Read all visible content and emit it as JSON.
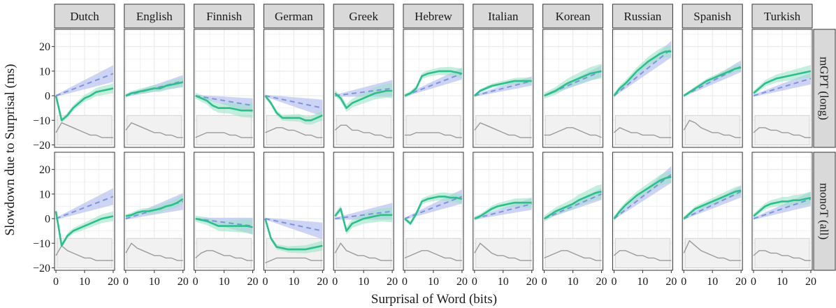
{
  "chart_data": {
    "type": "line",
    "xlabel": "Surprisal of Word (bits)",
    "ylabel": "Slowdown due to Surprisal (ms)",
    "xlim": [
      -0.5,
      20.5
    ],
    "ylim": [
      -21,
      27
    ],
    "x_ticks": [
      0,
      10,
      20
    ],
    "y_ticks": [
      20,
      10,
      0,
      -10,
      -20
    ],
    "grid": true,
    "languages": [
      "Dutch",
      "English",
      "Finnish",
      "German",
      "Greek",
      "Hebrew",
      "Italian",
      "Korean",
      "Russian",
      "Spanish",
      "Turkish"
    ],
    "rows": [
      "mGPT (long)",
      "monoT (all)"
    ],
    "colors": {
      "nonlinear": "#2dbf8b",
      "nonlinear_band": "#9de3c6",
      "linear": "#7f93e0",
      "linear_band": "#b8c2ef",
      "density": "#9a9a9a",
      "density_box": "#f1f1f1",
      "strip": "#d9d9d9"
    },
    "x": [
      0,
      2,
      4,
      6,
      8,
      10,
      12,
      14,
      16,
      18,
      20
    ],
    "panels": [
      {
        "row": "mGPT (long)",
        "language": "Dutch",
        "linear_end": 9,
        "linear_band": 3,
        "nonlinear": [
          0,
          -10,
          -8,
          -5,
          -3,
          -1,
          0,
          1.5,
          2,
          2.5,
          3
        ],
        "nonlinear_band": 2,
        "density": [
          5,
          9,
          8,
          7,
          6,
          5,
          4,
          4,
          3,
          3,
          3
        ]
      },
      {
        "row": "mGPT (long)",
        "language": "English",
        "linear_end": 6,
        "linear_band": 2,
        "nonlinear": [
          0,
          1,
          1.5,
          2,
          2.5,
          3,
          3,
          4,
          4.5,
          5,
          5.5
        ],
        "nonlinear_band": 2,
        "density": [
          6,
          9,
          8,
          7,
          6,
          5,
          5,
          4,
          4,
          3,
          3
        ]
      },
      {
        "row": "mGPT (long)",
        "language": "Finnish",
        "linear_end": -4,
        "linear_band": 2.5,
        "nonlinear": [
          0,
          -1,
          -2,
          -4,
          -5,
          -5,
          -5,
          -5.5,
          -6,
          -6,
          -6
        ],
        "nonlinear_band": 3,
        "density": [
          3,
          4,
          5,
          5,
          5,
          5,
          4,
          4,
          3,
          3,
          3
        ]
      },
      {
        "row": "mGPT (long)",
        "language": "German",
        "linear_end": -5,
        "linear_band": 3,
        "nonlinear": [
          0,
          -3,
          -7,
          -9,
          -9,
          -9,
          -9,
          -10,
          -10,
          -9,
          -8
        ],
        "nonlinear_band": 2,
        "density": [
          5,
          6,
          7,
          7,
          6,
          6,
          5,
          4,
          4,
          3,
          3
        ]
      },
      {
        "row": "mGPT (long)",
        "language": "Greek",
        "linear_end": 3,
        "linear_band": 3,
        "nonlinear": [
          1,
          -1,
          -5,
          -3,
          -2,
          -1,
          0,
          1,
          1.5,
          2,
          2
        ],
        "nonlinear_band": 3,
        "density": [
          6,
          8,
          8,
          6,
          6,
          5,
          5,
          4,
          4,
          3,
          3
        ]
      },
      {
        "row": "mGPT (long)",
        "language": "Hebrew",
        "linear_end": 9,
        "linear_band": 2,
        "nonlinear": [
          0,
          1,
          3,
          8,
          9,
          9.5,
          10,
          10,
          10,
          9.5,
          9
        ],
        "nonlinear_band": 2,
        "density": [
          4,
          4,
          5,
          5,
          5,
          5,
          5,
          4,
          4,
          3,
          3
        ]
      },
      {
        "row": "mGPT (long)",
        "language": "Italian",
        "linear_end": 6,
        "linear_band": 1.5,
        "nonlinear": [
          0,
          2,
          3,
          4,
          4.5,
          5,
          5.5,
          6,
          6,
          6,
          6
        ],
        "nonlinear_band": 1.5,
        "density": [
          6,
          9,
          8,
          7,
          6,
          5,
          4,
          4,
          3,
          3,
          3
        ]
      },
      {
        "row": "mGPT (long)",
        "language": "Korean",
        "linear_end": 10,
        "linear_band": 2,
        "nonlinear": [
          0,
          1,
          2,
          3.5,
          5,
          6,
          7,
          8,
          9,
          9.5,
          10
        ],
        "nonlinear_band": 3,
        "density": [
          4,
          4,
          5,
          6,
          7,
          7,
          6,
          5,
          4,
          4,
          3
        ]
      },
      {
        "row": "mGPT (long)",
        "language": "Russian",
        "linear_end": 19,
        "linear_band": 3,
        "nonlinear": [
          0,
          3,
          5,
          7.5,
          10,
          12,
          14,
          15.5,
          17,
          18,
          18
        ],
        "nonlinear_band": 2.5,
        "density": [
          5,
          7,
          6,
          5,
          5,
          4,
          4,
          4,
          3,
          3,
          3
        ]
      },
      {
        "row": "mGPT (long)",
        "language": "Spanish",
        "linear_end": 12,
        "linear_band": 2,
        "nonlinear": [
          0,
          1.5,
          3,
          4.5,
          6,
          7,
          8,
          9,
          10,
          11,
          11.5
        ],
        "nonlinear_band": 1.5,
        "density": [
          6,
          10,
          9,
          7,
          6,
          5,
          5,
          4,
          4,
          3,
          3
        ]
      },
      {
        "row": "mGPT (long)",
        "language": "Turkish",
        "linear_end": 7,
        "linear_band": 2,
        "nonlinear": [
          1,
          3,
          5,
          6,
          7,
          7.5,
          8,
          8.5,
          9,
          9.5,
          10
        ],
        "nonlinear_band": 2.5,
        "density": [
          5,
          7,
          7,
          6,
          6,
          5,
          5,
          4,
          4,
          3,
          3
        ]
      },
      {
        "row": "monoT (all)",
        "language": "Dutch",
        "linear_end": 9,
        "linear_band": 3,
        "nonlinear": [
          3,
          -11,
          -7,
          -5,
          -4,
          -3,
          -2,
          -1,
          0,
          0.5,
          1
        ],
        "nonlinear_band": 2,
        "density": [
          5,
          9,
          7,
          6,
          5,
          4,
          4,
          3,
          3,
          3,
          3
        ]
      },
      {
        "row": "monoT (all)",
        "language": "English",
        "linear_end": 7,
        "linear_band": 3,
        "nonlinear": [
          1,
          1.5,
          2.5,
          3,
          3,
          3.5,
          4,
          5,
          5.5,
          6.5,
          8
        ],
        "nonlinear_band": 2,
        "density": [
          6,
          10,
          8,
          7,
          6,
          5,
          5,
          4,
          4,
          3,
          3
        ]
      },
      {
        "row": "monoT (all)",
        "language": "Finnish",
        "linear_end": -3,
        "linear_band": 3,
        "nonlinear": [
          0,
          -0.5,
          -1,
          -2,
          -3,
          -3,
          -3,
          -3,
          -3,
          -3,
          -3.5
        ],
        "nonlinear_band": 3,
        "density": [
          4,
          6,
          7,
          7,
          6,
          5,
          5,
          4,
          4,
          3,
          3
        ]
      },
      {
        "row": "monoT (all)",
        "language": "German",
        "linear_end": -5,
        "linear_band": 3,
        "nonlinear": [
          0,
          -8,
          -11.5,
          -12,
          -12.5,
          -12.5,
          -12.5,
          -12.5,
          -12,
          -11.5,
          -11
        ],
        "nonlinear_band": 2,
        "density": [
          2,
          3,
          4,
          4,
          4,
          4,
          4,
          4,
          3,
          3,
          3
        ]
      },
      {
        "row": "monoT (all)",
        "language": "Greek",
        "linear_end": 3,
        "linear_band": 3,
        "nonlinear": [
          1,
          4,
          -5,
          -2,
          -1,
          0,
          0.5,
          1,
          1.5,
          1.5,
          1.5
        ],
        "nonlinear_band": 3,
        "density": [
          6,
          10,
          7,
          6,
          5,
          5,
          4,
          4,
          3,
          3,
          3
        ]
      },
      {
        "row": "monoT (all)",
        "language": "Hebrew",
        "linear_end": 9,
        "linear_band": 2.5,
        "nonlinear": [
          0,
          -2,
          2,
          7,
          8,
          8.5,
          9,
          9,
          8.5,
          8.5,
          8
        ],
        "nonlinear_band": 2,
        "density": [
          4,
          5,
          6,
          7,
          7,
          6,
          5,
          4,
          4,
          3,
          3
        ]
      },
      {
        "row": "monoT (all)",
        "language": "Italian",
        "linear_end": 6,
        "linear_band": 2,
        "nonlinear": [
          0,
          1,
          2.5,
          4,
          5,
          5.5,
          6,
          6.5,
          6.5,
          6.5,
          6.5
        ],
        "nonlinear_band": 2,
        "density": [
          6,
          10,
          8,
          6,
          5,
          5,
          4,
          4,
          3,
          3,
          3
        ]
      },
      {
        "row": "monoT (all)",
        "language": "Korean",
        "linear_end": 10,
        "linear_band": 2,
        "nonlinear": [
          0,
          1.5,
          3,
          4,
          5,
          6,
          7.5,
          8.5,
          9.5,
          10.5,
          11
        ],
        "nonlinear_band": 3,
        "density": [
          4,
          5,
          6,
          7,
          7,
          6,
          5,
          4,
          4,
          3,
          3
        ]
      },
      {
        "row": "monoT (all)",
        "language": "Russian",
        "linear_end": 18,
        "linear_band": 3,
        "nonlinear": [
          0,
          3,
          5.5,
          7.5,
          9.5,
          11,
          12.5,
          14,
          15.5,
          16.5,
          17
        ],
        "nonlinear_band": 2.5,
        "density": [
          5,
          7,
          7,
          6,
          5,
          5,
          4,
          4,
          3,
          3,
          3
        ]
      },
      {
        "row": "monoT (all)",
        "language": "Spanish",
        "linear_end": 11,
        "linear_band": 2,
        "nonlinear": [
          0,
          2,
          4,
          5,
          6,
          7,
          8,
          9,
          10,
          11,
          11.5
        ],
        "nonlinear_band": 2,
        "density": [
          6,
          11,
          9,
          7,
          6,
          5,
          4,
          4,
          3,
          3,
          3
        ]
      },
      {
        "row": "monoT (all)",
        "language": "Turkish",
        "linear_end": 8,
        "linear_band": 2.5,
        "nonlinear": [
          1,
          3,
          5,
          6,
          6.5,
          7,
          7,
          7.5,
          7.5,
          8,
          8.5
        ],
        "nonlinear_band": 2.5,
        "density": [
          5,
          7,
          7,
          6,
          6,
          5,
          5,
          4,
          4,
          3,
          3
        ]
      }
    ]
  }
}
